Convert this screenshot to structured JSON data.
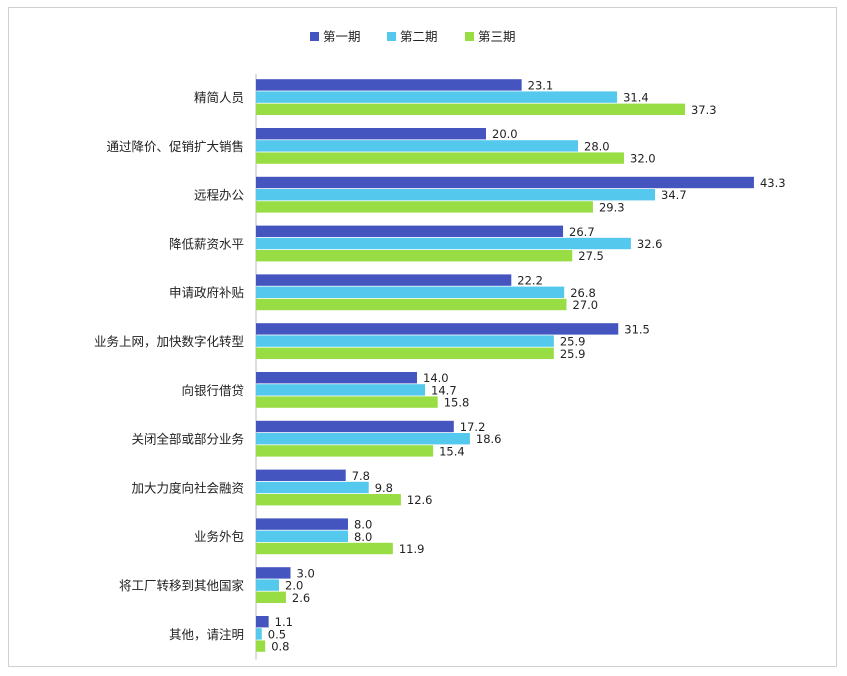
{
  "chart_data": {
    "type": "bar",
    "orientation": "horizontal",
    "categories": [
      "精简人员",
      "通过降价、促销扩大销售",
      "远程办公",
      "降低薪资水平",
      "申请政府补贴",
      "业务上网，加快数字化转型",
      "向银行借贷",
      "关闭全部或部分业务",
      "加大力度向社会融资",
      "业务外包",
      "将工厂转移到其他国家",
      "其他，请注明"
    ],
    "series": [
      {
        "name": "第一期",
        "color": "#4455c0",
        "values": [
          23.1,
          20.0,
          43.3,
          26.7,
          22.2,
          31.5,
          14.0,
          17.2,
          7.8,
          8.0,
          3.0,
          1.1
        ]
      },
      {
        "name": "第二期",
        "color": "#55c8ee",
        "values": [
          31.4,
          28.0,
          34.7,
          32.6,
          26.8,
          25.9,
          14.7,
          18.6,
          9.8,
          8.0,
          2.0,
          0.5
        ]
      },
      {
        "name": "第三期",
        "color": "#99dd44",
        "values": [
          37.3,
          32.0,
          29.3,
          27.5,
          27.0,
          25.9,
          15.8,
          15.4,
          12.6,
          11.9,
          2.6,
          0.8
        ]
      }
    ],
    "xlim": [
      0,
      50
    ],
    "legend": "top-center",
    "grid": false
  }
}
